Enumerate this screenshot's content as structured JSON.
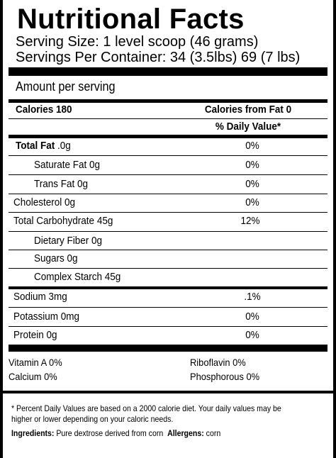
{
  "label": {
    "title": "Nutritional Facts",
    "serving_size": "Serving Size: 1 level scoop (46 grams)",
    "servings_per_container": "Servings Per Container: 34 (3.5lbs) 69 (7 lbs)",
    "amount_per_serving": "Amount per serving",
    "calories": "Calories 180",
    "calories_from_fat": "Calories from Fat 0",
    "daily_value_header": "% Daily Value*",
    "nutrients": [
      {
        "name": "Total Fat",
        "amount": " .0g",
        "dv": "0%"
      },
      {
        "name": "Saturate Fat 0g",
        "dv": "0%"
      },
      {
        "name": "Trans Fat 0g",
        "dv": "0%"
      },
      {
        "name": "Cholesterol 0g",
        "dv": "0%"
      },
      {
        "name": "Total Carbohydrate 45g",
        "dv": "12%"
      },
      {
        "name": "Dietary Fiber 0g",
        "dv": ""
      },
      {
        "name": "Sugars 0g",
        "dv": ""
      },
      {
        "name": "Complex Starch 45g",
        "dv": ""
      },
      {
        "name": "Sodium 3mg",
        "dv": ".1%"
      },
      {
        "name": "Potassium 0mg",
        "dv": "0%"
      },
      {
        "name": "Protein 0g",
        "dv": "0%"
      }
    ],
    "vitamins": {
      "vitamin_a": "Vitamin A 0%",
      "calcium": "Calcium 0%",
      "riboflavin": "Riboflavin 0%",
      "phosphorous": "Phosphorous 0%"
    },
    "footnote": "* Percent Daily Values are based on a 2000 calorie diet. Your daily values may be higher or lower depending on your caloric needs.",
    "ingredients_label": "Ingredients:",
    "ingredients_text": " Pure dextrose derived from corn",
    "allergens_label": "Allergens:",
    "allergens_text": " corn"
  }
}
